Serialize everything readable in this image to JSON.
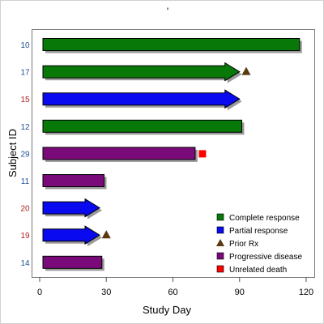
{
  "chart_data": {
    "type": "swimmer",
    "title": "'",
    "xlabel": "Study Day",
    "ylabel": "Subject ID",
    "xlim": [
      0,
      122
    ],
    "xticks": [
      0,
      30,
      60,
      90,
      120
    ],
    "legend_position": "bottom-right",
    "subjects": [
      {
        "id": "10",
        "end": 117,
        "response": "Complete response",
        "ongoing": false,
        "id_color": "#1f4e96",
        "events": []
      },
      {
        "id": "17",
        "end": 90,
        "response": "Complete response",
        "ongoing": true,
        "id_color": "#1f4e96",
        "events": [
          {
            "type": "Prior Rx",
            "day": 93
          }
        ]
      },
      {
        "id": "15",
        "end": 90,
        "response": "Partial response",
        "ongoing": true,
        "id_color": "#b22222",
        "events": []
      },
      {
        "id": "12",
        "end": 91,
        "response": "Complete response",
        "ongoing": false,
        "id_color": "#1f4e96",
        "events": []
      },
      {
        "id": "29",
        "end": 70,
        "response": "Progressive disease",
        "ongoing": false,
        "id_color": "#1f4e96",
        "events": [
          {
            "type": "Unrelated death",
            "day": 72
          }
        ]
      },
      {
        "id": "11",
        "end": 29,
        "response": "Progressive disease",
        "ongoing": false,
        "id_color": "#1f4e96",
        "events": []
      },
      {
        "id": "20",
        "end": 27,
        "response": "Partial response",
        "ongoing": true,
        "id_color": "#b22222",
        "events": []
      },
      {
        "id": "19",
        "end": 27,
        "response": "Partial response",
        "ongoing": true,
        "id_color": "#b22222",
        "events": [
          {
            "type": "Prior Rx",
            "day": 30
          }
        ]
      },
      {
        "id": "14",
        "end": 28,
        "response": "Progressive disease",
        "ongoing": false,
        "id_color": "#1f4e96",
        "events": []
      }
    ],
    "legend": [
      {
        "label": "Complete response",
        "symbol": "square",
        "color": "#087808"
      },
      {
        "label": "Partial response",
        "symbol": "square",
        "color": "#0a0af0"
      },
      {
        "label": "Prior Rx",
        "symbol": "triangle",
        "color": "#5a3810"
      },
      {
        "label": "Progressive disease",
        "symbol": "square",
        "color": "#7a0a7a"
      },
      {
        "label": "Unrelated death",
        "symbol": "square",
        "color": "#ff0000"
      }
    ],
    "colors": {
      "Complete response": "#087808",
      "Partial response": "#0a0af0",
      "Progressive disease": "#7a0a7a",
      "Prior Rx": "#5a3810",
      "Unrelated death": "#ff0000"
    }
  }
}
